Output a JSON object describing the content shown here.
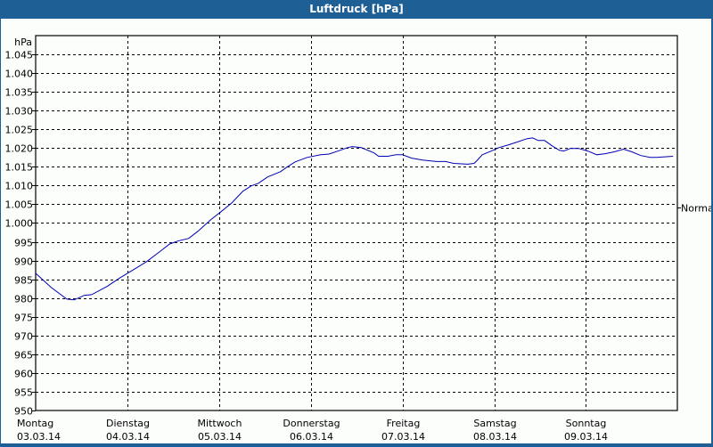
{
  "window": {
    "title": "Luftdruck [hPa]"
  },
  "colors": {
    "titlebar": "#1e5f96",
    "background": "#fcfefc",
    "line": "#0000b4",
    "grid": "#000000"
  },
  "chart_data": {
    "type": "line",
    "title": "Luftdruck [hPa]",
    "xlabel": "",
    "ylabel": "hPa",
    "ylim": [
      950,
      1050
    ],
    "y_ticks": [
      "950",
      "955",
      "960",
      "965",
      "970",
      "975",
      "980",
      "985",
      "990",
      "995",
      "1.000",
      "1.005",
      "1.010",
      "1.015",
      "1.020",
      "1.025",
      "1.030",
      "1.035",
      "1.040",
      "1.045"
    ],
    "x_ticks": [
      {
        "day": "Montag",
        "date": "03.03.14"
      },
      {
        "day": "Dienstag",
        "date": "04.03.14"
      },
      {
        "day": "Mittwoch",
        "date": "05.03.14"
      },
      {
        "day": "Donnerstag",
        "date": "06.03.14"
      },
      {
        "day": "Freitag",
        "date": "07.03.14"
      },
      {
        "day": "Samstag",
        "date": "08.03.14"
      },
      {
        "day": "Sonntag",
        "date": "09.03.14"
      }
    ],
    "reference_marker": {
      "label": "Normal",
      "value": 1004.2
    },
    "grid": true,
    "legend": "none",
    "series": [
      {
        "name": "Luftdruck",
        "x_days": [
          0,
          0.17,
          0.34,
          0.42,
          0.53,
          0.61,
          0.78,
          0.92,
          1.07,
          1.21,
          1.36,
          1.46,
          1.55,
          1.67,
          1.77,
          1.91,
          2.02,
          2.14,
          2.26,
          2.35,
          2.43,
          2.53,
          2.67,
          2.74,
          2.83,
          2.96,
          3.11,
          3.2,
          3.32,
          3.4,
          3.45,
          3.55,
          3.69,
          3.74,
          3.84,
          3.93,
          4.0,
          4.1,
          4.22,
          4.37,
          4.47,
          4.56,
          4.71,
          4.78,
          4.81,
          4.87,
          4.97,
          5.05,
          5.15,
          5.24,
          5.36,
          5.42,
          5.48,
          5.55,
          5.63,
          5.71,
          5.76,
          5.83,
          5.92,
          6.02,
          6.12,
          6.21,
          6.31,
          6.41,
          6.5,
          6.6,
          6.7,
          6.77,
          6.95
        ],
        "values": [
          986.6,
          982.8,
          979.7,
          979.5,
          980.7,
          980.9,
          983.1,
          985.4,
          987.6,
          989.7,
          992.5,
          994.4,
          995.2,
          995.9,
          997.8,
          1000.9,
          1003.0,
          1005.4,
          1008.5,
          1009.9,
          1010.6,
          1012.3,
          1013.7,
          1014.9,
          1016.3,
          1017.5,
          1018.2,
          1018.4,
          1019.4,
          1020.1,
          1020.4,
          1020.1,
          1018.7,
          1017.8,
          1017.8,
          1018.2,
          1018.2,
          1017.3,
          1016.8,
          1016.4,
          1016.4,
          1015.9,
          1015.7,
          1015.9,
          1016.6,
          1018.2,
          1019.2,
          1020.1,
          1020.8,
          1021.5,
          1022.5,
          1022.7,
          1022.0,
          1022.0,
          1020.6,
          1019.4,
          1019.2,
          1019.9,
          1019.9,
          1019.2,
          1018.2,
          1018.5,
          1019.0,
          1019.7,
          1019.0,
          1018.0,
          1017.5,
          1017.5,
          1017.8
        ]
      }
    ]
  }
}
